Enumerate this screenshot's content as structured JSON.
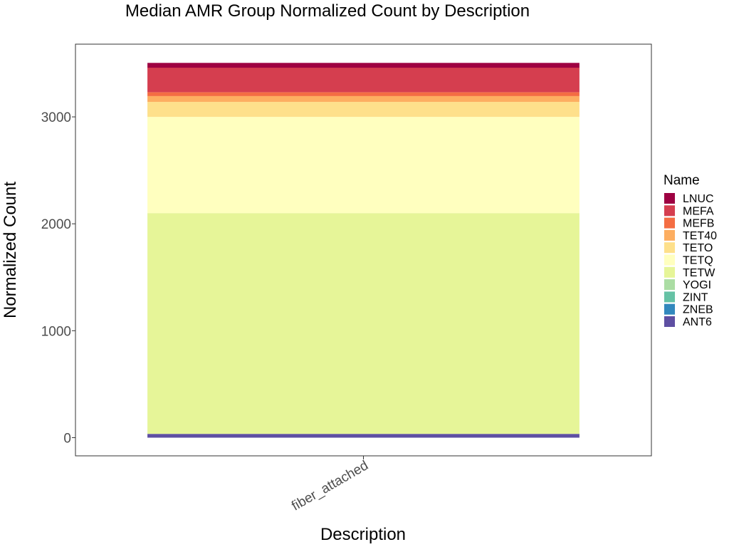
{
  "chart_data": {
    "type": "bar",
    "stacked": true,
    "title": "Median AMR Group Normalized Count by Description",
    "xlabel": "Description",
    "ylabel": "Normalized Count",
    "categories": [
      "fiber_attached"
    ],
    "ylim": [
      -170,
      3680
    ],
    "yticks": [
      0,
      1000,
      2000,
      3000
    ],
    "ytick_labels": [
      "0",
      "1000",
      "2000",
      "3000"
    ],
    "grid": false,
    "legend": {
      "title": "Name",
      "placement": "right",
      "entries": [
        "LNUC",
        "MEFA",
        "MEFB",
        "TET40",
        "TETO",
        "TETQ",
        "TETW",
        "YOGI",
        "ZINT",
        "ZNEB",
        "ANT6"
      ]
    },
    "series": [
      {
        "name": "ANT6",
        "values": [
          35
        ],
        "color": "#5e4fa2"
      },
      {
        "name": "ZNEB",
        "values": [
          0
        ],
        "color": "#3288bd"
      },
      {
        "name": "ZINT",
        "values": [
          0
        ],
        "color": "#66c2a5"
      },
      {
        "name": "YOGI",
        "values": [
          0
        ],
        "color": "#abdda4"
      },
      {
        "name": "TETW",
        "values": [
          2065
        ],
        "color": "#e6f598"
      },
      {
        "name": "TETQ",
        "values": [
          900
        ],
        "color": "#ffffbf"
      },
      {
        "name": "TETO",
        "values": [
          140
        ],
        "color": "#fee08b"
      },
      {
        "name": "TET40",
        "values": [
          55
        ],
        "color": "#fdae61"
      },
      {
        "name": "MEFB",
        "values": [
          35
        ],
        "color": "#f46d43"
      },
      {
        "name": "MEFA",
        "values": [
          230
        ],
        "color": "#d53e4f"
      },
      {
        "name": "LNUC",
        "values": [
          45
        ],
        "color": "#9e0142"
      }
    ]
  }
}
